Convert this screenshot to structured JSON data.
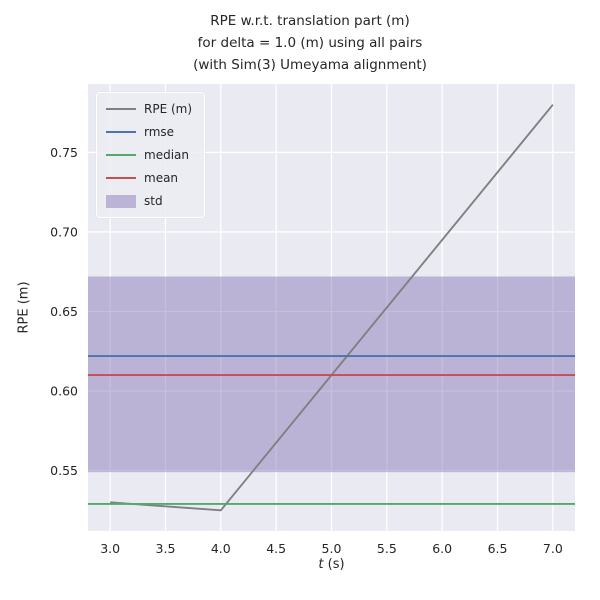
{
  "chart_data": {
    "type": "line",
    "title": "RPE w.r.t. translation part (m)\nfor delta = 1.0 (m) using all pairs\n(with Sim(3) Umeyama alignment)",
    "ylabel": "RPE (m)",
    "xlabel_math": "t",
    "xlabel_unit": " (s)",
    "xlim": [
      2.8,
      7.2
    ],
    "ylim": [
      0.512,
      0.793
    ],
    "xticks": [
      3.0,
      3.5,
      4.0,
      4.5,
      5.0,
      5.5,
      6.0,
      6.5,
      7.0
    ],
    "xtick_labels": [
      "3.0",
      "3.5",
      "4.0",
      "4.5",
      "5.0",
      "5.5",
      "6.0",
      "6.5",
      "7.0"
    ],
    "yticks": [
      0.55,
      0.6,
      0.65,
      0.7,
      0.75
    ],
    "ytick_labels": [
      "0.55",
      "0.60",
      "0.65",
      "0.70",
      "0.75"
    ],
    "grid": true,
    "legend_position": "upper left",
    "background_color": "#eaeaf2",
    "grid_color": "#ffffff",
    "text_color": "#262626",
    "series": [
      {
        "name": "RPE (m)",
        "color": "#808080",
        "x": [
          3.0,
          4.0,
          7.0
        ],
        "y": [
          0.53,
          0.525,
          0.78
        ]
      },
      {
        "name": "rmse",
        "color": "#4c72b0",
        "x": [
          2.8,
          7.2
        ],
        "y": [
          0.622,
          0.622
        ]
      },
      {
        "name": "median",
        "color": "#55a868",
        "x": [
          2.8,
          7.2
        ],
        "y": [
          0.529,
          0.529
        ]
      },
      {
        "name": "mean",
        "color": "#c44e52",
        "x": [
          2.8,
          7.2
        ],
        "y": [
          0.61,
          0.61
        ]
      }
    ],
    "band": {
      "name": "std",
      "color": "#8172b2",
      "opacity": 0.45,
      "ymin": 0.549,
      "ymax": 0.672,
      "x": [
        2.8,
        7.2
      ]
    }
  }
}
